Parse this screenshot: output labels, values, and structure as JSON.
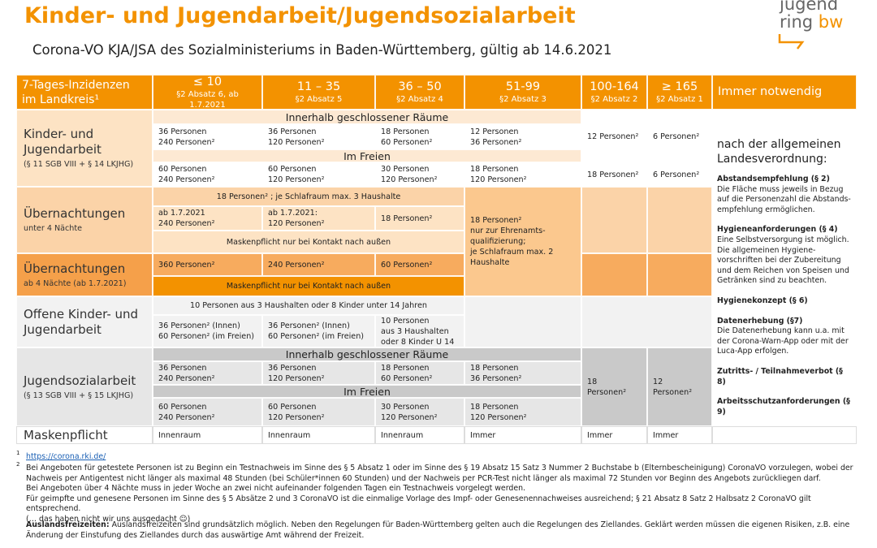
{
  "header": {
    "title": "Kinder- und Jugendarbeit/Jugendsozialarbeit",
    "subtitle": "Corona-VO KJA/JSA des Sozialministeriums in Baden-Württemberg, gültig ab 14.6.2021",
    "logo": [
      "jugend",
      "ring",
      "bw"
    ]
  },
  "table": {
    "corner": "7-Tages-Inzidenzen\nim Landkreis¹",
    "columns": [
      {
        "range": "≤ 10",
        "rule": "§2 Absatz  6, ab 1.7.2021"
      },
      {
        "range": "11 – 35",
        "rule": "§2 Absatz 5"
      },
      {
        "range": "36 – 50",
        "rule": "§2 Absatz 4"
      },
      {
        "range": "51-99",
        "rule": "§2 Absatz 3"
      },
      {
        "range": "100-164",
        "rule": "§2 Absatz 2"
      },
      {
        "range": "≥ 165",
        "rule": "§2 Absatz 1"
      }
    ],
    "always": "Immer notwendig",
    "kja": {
      "label": "Kinder- und\nJugendarbeit",
      "sub": "(§ 11 SGB VIII + § 14 LKJHG)",
      "indoor": "Innerhalb geschlossener Räume",
      "indoor_cells": [
        "36 Personen\n240 Personen²",
        "36 Personen\n120 Personen²",
        "18 Personen\n60 Personen²",
        "12 Personen\n36 Personen²",
        "12 Personen²",
        "6 Personen²"
      ],
      "outdoor": "Im Freien",
      "outdoor_cells": [
        "60 Personen\n240 Personen²",
        "60 Personen\n120 Personen²",
        "30 Personen\n120 Personen²",
        "18 Personen\n120 Personen²",
        "18 Personen²",
        "6 Personen²"
      ]
    },
    "overnight_short": {
      "label": "Übernachtungen",
      "sub": "unter 4 Nächte",
      "span": "18 Personen² ; je Schlafraum max.  3 Haushalte",
      "cells": [
        "ab 1.7.2021\n240 Personen²",
        "ab 1.7.2021:\n120 Personen²",
        "18 Personen²"
      ],
      "mask": "Maskenpflicht nur bei Kontakt nach außen",
      "col_51_99": "18 Personen²\nnur zur Ehrenamts-\nqualifizierung;\nje Schlafraum max. 2\nHaushalte"
    },
    "overnight_long": {
      "label": "Übernachtungen",
      "sub": "ab 4 Nächte (ab 1.7.2021)",
      "cells": [
        "360 Personen²",
        "240 Personen²",
        "60 Personen²"
      ],
      "mask": "Maskenpflicht nur bei Kontakt nach außen"
    },
    "open": {
      "label": "Offene Kinder- und\nJugendarbeit",
      "span": "10 Personen aus 3 Haushalten oder 8 Kinder  unter 14 Jahren",
      "cells": [
        "36 Personen² (Innen)\n60 Personen² (im Freien)",
        "36 Personen² (Innen)\n60 Personen² (im Freien)",
        "10 Personen\naus 3 Haushalten\noder 8 Kinder U 14"
      ]
    },
    "jsa": {
      "label": "Jugendsozialarbeit",
      "sub": "(§ 13 SGB VIII + § 15 LKJHG)",
      "indoor": "Innerhalb geschlossener Räume",
      "indoor_cells": [
        "36 Personen\n240 Personen²",
        "36 Personen\n120 Personen²",
        "18 Personen\n60 Personen²",
        "18 Personen\n36 Personen²"
      ],
      "outdoor": "Im Freien",
      "outdoor_cells": [
        "60 Personen\n240 Personen²",
        "60 Personen\n120 Personen²",
        "30 Personen\n120 Personen²",
        "18 Personen\n120 Personen²"
      ],
      "col_100_164": "18\nPersonen²",
      "col_165": "12\nPersonen²"
    },
    "mask": {
      "label": "Maskenpflicht",
      "cells": [
        "Innenraum",
        "Innenraum",
        "Innenraum",
        "Immer",
        "Immer",
        "Immer"
      ]
    },
    "general": {
      "heading": "nach der allgemeinen\nLandesverordnung:",
      "items": [
        {
          "title": "Abstandsempfehlung (§ 2)",
          "text": "Die Fläche muss jeweils in Bezug auf die Personenzahl die Abstands-empfehlung ermöglichen."
        },
        {
          "title": "Hygieneanforderungen (§ 4)",
          "text": "Eine Selbstversorgung ist möglich. Die allgemeinen Hygiene-vorschriften bei der Zubereitung und dem Reichen von Speisen und Getränken sind zu beachten."
        },
        {
          "title": "Hygienekonzept (§ 6)"
        },
        {
          "title": "Datenerhebung (§7)",
          "text": "Die Datenerhebung kann u.a. mit der Corona-Warn-App oder mit der Luca-App erfolgen."
        },
        {
          "title": "Zutritts- / Teilnahmeverbot (§ 8)"
        },
        {
          "title": "Arbeitsschutzanforderungen (§ 9)"
        }
      ]
    }
  },
  "footnotes": [
    {
      "mark": "1",
      "text": "https://corona.rki.de/"
    },
    {
      "mark": "2",
      "text": "Bei Angeboten für getestete Personen ist zu Beginn ein Testnachweis im Sinne des § 5 Absatz 1 oder im Sinne des § 19 Absatz 15 Satz 3 Nummer 2 Buchstabe b (Elternbescheinigung) CoronaVO vorzulegen, wobei der Nachweis per Antigentest nicht länger als maximal 48 Stunden (bei Schüler*innen 60 Stunden) und der Nachweis per PCR-Test nicht länger als maximal 72 Stunden vor Beginn des Angebots zurückliegen darf.\nBei Angeboten über 4 Nächte muss in jeder Woche an zwei nicht aufeinander folgenden Tagen ein Testnachweis vorgelegt werden.\nFür geimpfte und genesene Personen im Sinne des § 5 Absätze 2 und 3 CoronaVO ist die einmalige Vorlage des Impf- oder Genesenennachweises ausreichend; § 21 Absatz 8 Satz 2 Halbsatz 2 CoronaVO gilt entsprechend.\n(… das haben nicht wir uns ausgedacht ☺)"
    }
  ],
  "abroad": {
    "title": "Auslandsfreizeiten:",
    "text": "Auslandsfreizeiten sind grundsätzlich möglich. Neben den Regelungen für Baden-Württemberg gelten auch die Regelungen des Ziellandes. Geklärt werden müssen die eigenen Risiken, z.B. eine Änderung der Einstufung des Ziellandes durch das auswärtige Amt während der Freizeit."
  }
}
